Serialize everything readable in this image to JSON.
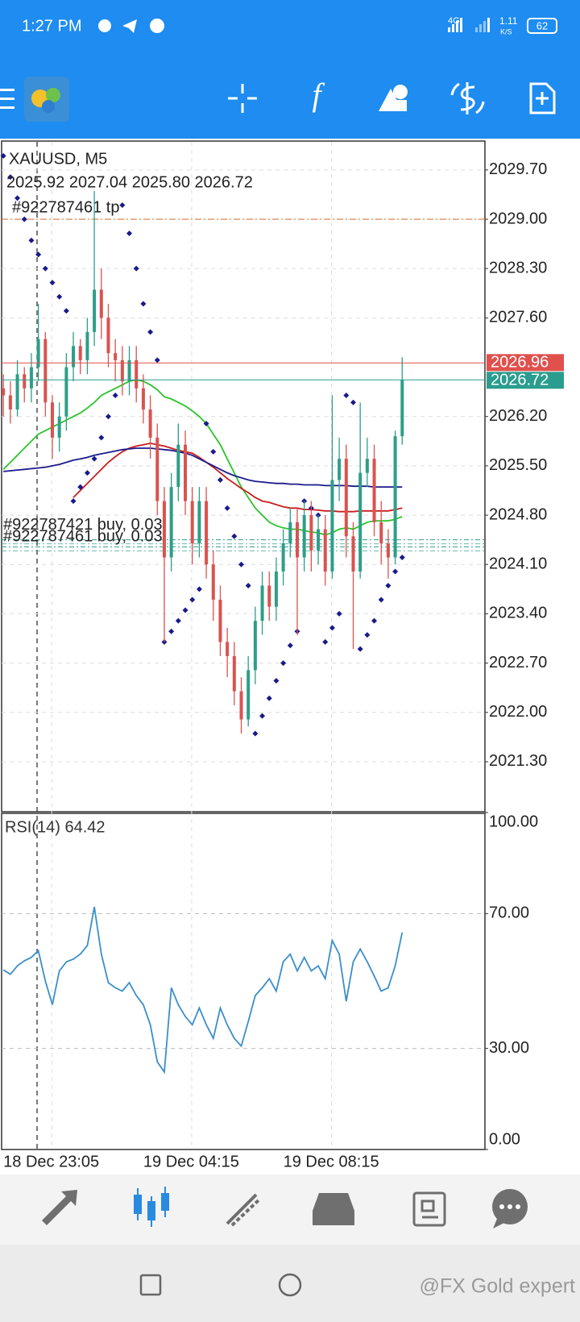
{
  "status_bar": {
    "time": "1:27 PM",
    "network": "4G",
    "speed": "1.11",
    "speed_unit": "K/S",
    "battery": "62"
  },
  "toolbar": {
    "function_icon": "f"
  },
  "watermark": "@FX Gold expert",
  "chart_data": [
    {
      "type": "candlestick",
      "title": "XAUUSD, M5",
      "ohlc_label": "2025.92 2027.04 2025.80 2026.72",
      "categories": [
        "18 Dec 23:05",
        null,
        null,
        null,
        null,
        null,
        null,
        null,
        null,
        null,
        null,
        null,
        null,
        null,
        null,
        null,
        null,
        null,
        null,
        null,
        "19 Dec 04:15",
        null,
        null,
        null,
        null,
        null,
        null,
        null,
        null,
        null,
        null,
        null,
        null,
        null,
        null,
        null,
        null,
        null,
        null,
        null,
        "19 Dec 08:15",
        null,
        null,
        null,
        null,
        null,
        null,
        null,
        null,
        null,
        null,
        null,
        null,
        null,
        null,
        null,
        null,
        null
      ],
      "open": [
        2026.6,
        2026.5,
        2026.3,
        2026.8,
        2026.6,
        2026.9,
        2027.3,
        2026.4,
        2025.9,
        2026.2,
        2026.9,
        2027.2,
        2027.0,
        2027.4,
        2028.0,
        2027.6,
        2027.1,
        2027.0,
        2026.7,
        2027.0,
        2026.6,
        2026.3,
        2025.9,
        2025.0,
        2024.2,
        2025.2,
        2025.8,
        2025.0,
        2024.4,
        2025.0,
        2024.1,
        2023.6,
        2023.0,
        2022.8,
        2022.3,
        2021.9,
        2022.6,
        2023.3,
        2023.8,
        2023.5,
        2024.0,
        2024.4,
        2024.7,
        2024.2,
        2024.8,
        2024.3,
        2024.6,
        2024.0,
        2025.3,
        2025.6,
        2024.5,
        2024.0,
        2025.4,
        2025.6,
        2024.7,
        2024.4,
        2024.2,
        2025.92
      ],
      "high": [
        2026.8,
        2026.7,
        2027.0,
        2026.9,
        2027.1,
        2027.8,
        2027.4,
        2026.5,
        2026.4,
        2027.1,
        2027.4,
        2027.3,
        2027.6,
        2029.4,
        2028.3,
        2027.8,
        2027.3,
        2027.2,
        2027.2,
        2027.2,
        2026.8,
        2026.5,
        2026.1,
        2025.2,
        2025.4,
        2026.1,
        2026.0,
        2025.2,
        2025.2,
        2025.2,
        2024.3,
        2023.8,
        2023.2,
        2023.0,
        2022.5,
        2022.8,
        2023.5,
        2024.0,
        2024.0,
        2024.2,
        2024.6,
        2024.9,
        2024.9,
        2025.0,
        2025.0,
        2024.8,
        2024.8,
        2026.5,
        2025.9,
        2025.8,
        2024.7,
        2026.4,
        2025.9,
        2025.8,
        2025.0,
        2024.6,
        2026.0,
        2027.04
      ],
      "low": [
        2026.2,
        2026.1,
        2026.2,
        2026.4,
        2026.4,
        2026.7,
        2026.2,
        2025.6,
        2025.7,
        2026.0,
        2026.7,
        2026.8,
        2026.8,
        2027.2,
        2027.3,
        2026.9,
        2026.7,
        2026.5,
        2026.5,
        2026.4,
        2026.1,
        2025.6,
        2024.8,
        2023.0,
        2024.0,
        2025.0,
        2024.8,
        2024.1,
        2024.2,
        2023.9,
        2023.3,
        2022.8,
        2022.5,
        2022.1,
        2021.7,
        2021.8,
        2022.4,
        2023.1,
        2023.3,
        2023.3,
        2023.8,
        2024.2,
        2023.1,
        2024.0,
        2024.0,
        2024.1,
        2023.8,
        2023.9,
        2025.0,
        2024.2,
        2022.9,
        2023.9,
        2025.2,
        2024.5,
        2024.1,
        2023.9,
        2024.1,
        2025.8
      ],
      "close": [
        2026.5,
        2026.3,
        2026.8,
        2026.6,
        2026.9,
        2027.3,
        2026.4,
        2025.9,
        2026.2,
        2026.9,
        2027.2,
        2027.0,
        2027.4,
        2028.0,
        2027.6,
        2027.1,
        2027.0,
        2026.7,
        2027.0,
        2026.6,
        2026.3,
        2025.9,
        2025.0,
        2024.2,
        2025.2,
        2025.8,
        2025.0,
        2024.4,
        2025.0,
        2024.1,
        2023.6,
        2023.0,
        2022.8,
        2022.3,
        2021.9,
        2022.6,
        2023.3,
        2023.8,
        2023.5,
        2024.0,
        2024.4,
        2024.7,
        2024.2,
        2024.8,
        2024.3,
        2024.6,
        2024.0,
        2025.3,
        2025.6,
        2024.5,
        2024.0,
        2025.4,
        2025.6,
        2024.7,
        2024.4,
        2024.2,
        2025.92,
        2026.72
      ],
      "up_color": "#2e9e88",
      "down_color": "#d9534f",
      "series": [
        {
          "style": "line",
          "color": "#2bc42b",
          "values": [
            2025.45,
            2025.55,
            2025.65,
            2025.75,
            2025.85,
            2025.95,
            2026.0,
            2026.05,
            2026.1,
            2026.15,
            2026.2,
            2026.25,
            2026.32,
            2026.4,
            2026.5,
            2026.55,
            2026.6,
            2026.65,
            2026.7,
            2026.72,
            2026.7,
            2026.65,
            2026.58,
            2026.48,
            2026.45,
            2026.4,
            2026.35,
            2026.28,
            2026.2,
            2026.1,
            2025.95,
            2025.8,
            2025.6,
            2025.4,
            2025.2,
            2025.05,
            2024.9,
            2024.8,
            2024.7,
            2024.65,
            2024.62,
            2024.6,
            2024.6,
            2024.58,
            2024.56,
            2024.55,
            2024.52,
            2024.55,
            2024.6,
            2024.62,
            2024.6,
            2024.65,
            2024.7,
            2024.72,
            2024.72,
            2024.72,
            2024.74,
            2024.78
          ]
        },
        {
          "style": "line",
          "color": "#c81e1e",
          "values": [
            null,
            null,
            null,
            null,
            null,
            null,
            null,
            null,
            null,
            null,
            2025.05,
            2025.15,
            2025.25,
            2025.35,
            2025.45,
            2025.55,
            2025.63,
            2025.7,
            2025.75,
            2025.78,
            2025.8,
            2025.82,
            2025.8,
            2025.78,
            2025.75,
            2025.72,
            2025.7,
            2025.68,
            2025.62,
            2025.55,
            2025.48,
            2025.4,
            2025.32,
            2025.25,
            2025.18,
            2025.12,
            2025.05,
            2025.0,
            2024.98,
            2024.95,
            2024.92,
            2024.9,
            2024.9,
            2024.88,
            2024.88,
            2024.87,
            2024.86,
            2024.86,
            2024.85,
            2024.85,
            2024.85,
            2024.86,
            2024.86,
            2024.86,
            2024.86,
            2024.86,
            2024.88,
            2024.9
          ]
        },
        {
          "style": "line",
          "color": "#1a1a8c",
          "values": [
            2025.42,
            2025.43,
            2025.44,
            2025.45,
            2025.46,
            2025.47,
            2025.48,
            2025.5,
            2025.52,
            2025.55,
            2025.58,
            2025.6,
            2025.62,
            2025.65,
            2025.67,
            2025.69,
            2025.71,
            2025.73,
            2025.74,
            2025.75,
            2025.75,
            2025.75,
            2025.74,
            2025.73,
            2025.72,
            2025.7,
            2025.68,
            2025.65,
            2025.6,
            2025.55,
            2025.5,
            2025.45,
            2025.4,
            2025.36,
            2025.33,
            2025.3,
            2025.28,
            2025.27,
            2025.26,
            2025.25,
            2025.25,
            2025.24,
            2025.24,
            2025.23,
            2025.23,
            2025.23,
            2025.22,
            2025.22,
            2025.22,
            2025.22,
            2025.21,
            2025.21,
            2025.21,
            2025.2,
            2025.2,
            2025.2,
            2025.2,
            2025.2
          ]
        },
        {
          "style": "dots",
          "color": "#1a1a8c",
          "values": [
            2029.9,
            2029.6,
            2029.3,
            2029.0,
            2028.7,
            2028.5,
            2028.3,
            2028.1,
            2027.9,
            2027.7,
            2025.0,
            2025.2,
            2025.4,
            2025.6,
            2025.9,
            2026.2,
            2026.5,
            2029.2,
            2028.8,
            2028.3,
            2027.8,
            2027.4,
            2027.0,
            2023.0,
            2023.15,
            2023.3,
            2023.45,
            2023.6,
            2023.75,
            2026.1,
            2025.7,
            2025.3,
            2024.9,
            2024.5,
            2024.1,
            2023.8,
            2021.7,
            2021.95,
            2022.2,
            2022.45,
            2022.7,
            2022.95,
            2023.15,
            2025.0,
            2024.9,
            2024.8,
            2023.0,
            2023.2,
            2023.4,
            2026.5,
            2026.4,
            2022.9,
            2023.1,
            2023.3,
            2023.6,
            2023.8,
            2024.0,
            2024.2
          ]
        }
      ],
      "tp": {
        "label": "#922787461 tp",
        "value": 2029.0,
        "color": "#d2691e"
      },
      "orders": [
        {
          "label": "#922787421 buy, 0.03",
          "value": 2024.45
        },
        {
          "label": "#922787461 buy, 0.03",
          "value": 2024.35
        }
      ],
      "order_color": "#2a9d8f",
      "ask": 2026.96,
      "ask_color": "#e0504c",
      "bid": 2026.72,
      "bid_color": "#2a9d8f",
      "ylim": [
        2020.59,
        2030.11
      ],
      "yticks": [
        {
          "value": 2029.7,
          "label": "2029.70"
        },
        {
          "value": 2029.0,
          "label": "2029.00"
        },
        {
          "value": 2028.3,
          "label": "2028.30"
        },
        {
          "value": 2027.6,
          "label": "2027.60"
        },
        {
          "value": 2026.2,
          "label": "2026.20"
        },
        {
          "value": 2025.5,
          "label": "2025.50"
        },
        {
          "value": 2024.8,
          "label": "2024.80"
        },
        {
          "value": 2024.1,
          "label": "2024.10"
        },
        {
          "value": 2023.4,
          "label": "2023.40"
        },
        {
          "value": 2022.7,
          "label": "2022.70"
        },
        {
          "value": 2022.0,
          "label": "2022.00"
        },
        {
          "value": 2021.3,
          "label": "2021.30"
        }
      ],
      "grid": true
    },
    {
      "type": "line",
      "title": "RSI(14) 64.42",
      "color": "#3a8fc9",
      "values": [
        53.3,
        52,
        54.5,
        56,
        57,
        59,
        50,
        43,
        53,
        55.7,
        56.5,
        58,
        60.5,
        72,
        58,
        49.5,
        48,
        47,
        49.5,
        45.7,
        43,
        37,
        26,
        23,
        48,
        43,
        39.5,
        37,
        42,
        37,
        33,
        42,
        37,
        33,
        30.7,
        38,
        45.7,
        48,
        50.7,
        47,
        55.7,
        58,
        53,
        57,
        53,
        54.5,
        50.7,
        62,
        58,
        44,
        55.7,
        59.5,
        55.7,
        51.5,
        47,
        48,
        54.5,
        64.42
      ],
      "ylim": [
        0,
        100
      ],
      "yticks": [
        {
          "value": 100,
          "label": "100.00"
        },
        {
          "value": 70,
          "label": "70.00"
        },
        {
          "value": 30,
          "label": "30.00"
        },
        {
          "value": 0,
          "label": "0.00"
        }
      ],
      "grid": true
    }
  ]
}
